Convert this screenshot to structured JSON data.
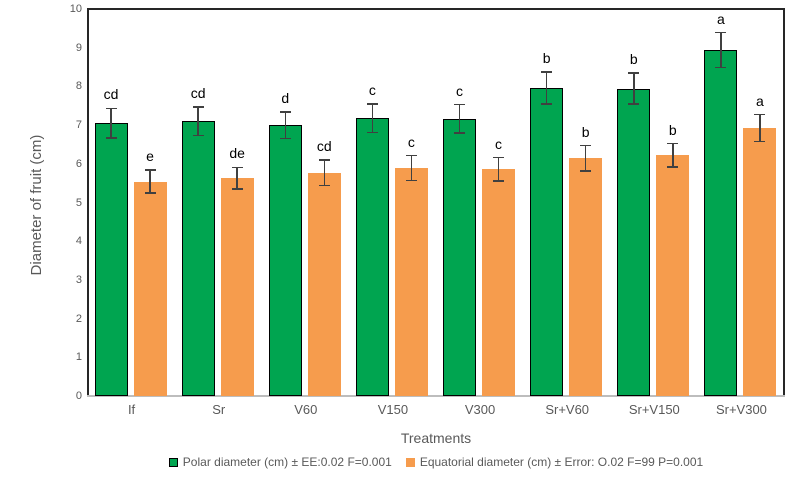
{
  "chart_data": {
    "type": "bar",
    "title": "",
    "xlabel": "Treatments",
    "ylabel": "Diameter of fruit (cm)",
    "ylim": [
      0,
      10
    ],
    "yticks": [
      0,
      1,
      2,
      3,
      4,
      5,
      6,
      7,
      8,
      9,
      10
    ],
    "grid": false,
    "legend_position": "bottom",
    "categories": [
      "If",
      "Sr",
      "V60",
      "V150",
      "V300",
      "Sr+V60",
      "Sr+V150",
      "Sr+V300"
    ],
    "series": [
      {
        "name": "Polar diameter (cm) ± EE:0.02 F=0.001",
        "color": "#00A550",
        "border_color": "#000000",
        "values": [
          7.05,
          7.1,
          7.0,
          7.18,
          7.16,
          7.96,
          7.94,
          8.94
        ],
        "errors": [
          0.38,
          0.37,
          0.34,
          0.37,
          0.37,
          0.41,
          0.4,
          0.45
        ],
        "letters": [
          "cd",
          "cd",
          "d",
          "c",
          "c",
          "b",
          "b",
          "a"
        ]
      },
      {
        "name": "Equatorial diameter (cm) ± Error: O.02 F=99 P=0.001",
        "color": "#F69C4D",
        "border_color": "none",
        "values": [
          5.54,
          5.63,
          5.77,
          5.89,
          5.86,
          6.14,
          6.22,
          6.92
        ],
        "errors": [
          0.3,
          0.28,
          0.33,
          0.32,
          0.3,
          0.33,
          0.3,
          0.35
        ],
        "letters": [
          "e",
          "de",
          "cd",
          "c",
          "c",
          "b",
          "b",
          "a"
        ]
      }
    ],
    "error_bar_color": "#404040",
    "axis_text_color": "#595959",
    "letter_color": "#000000"
  }
}
